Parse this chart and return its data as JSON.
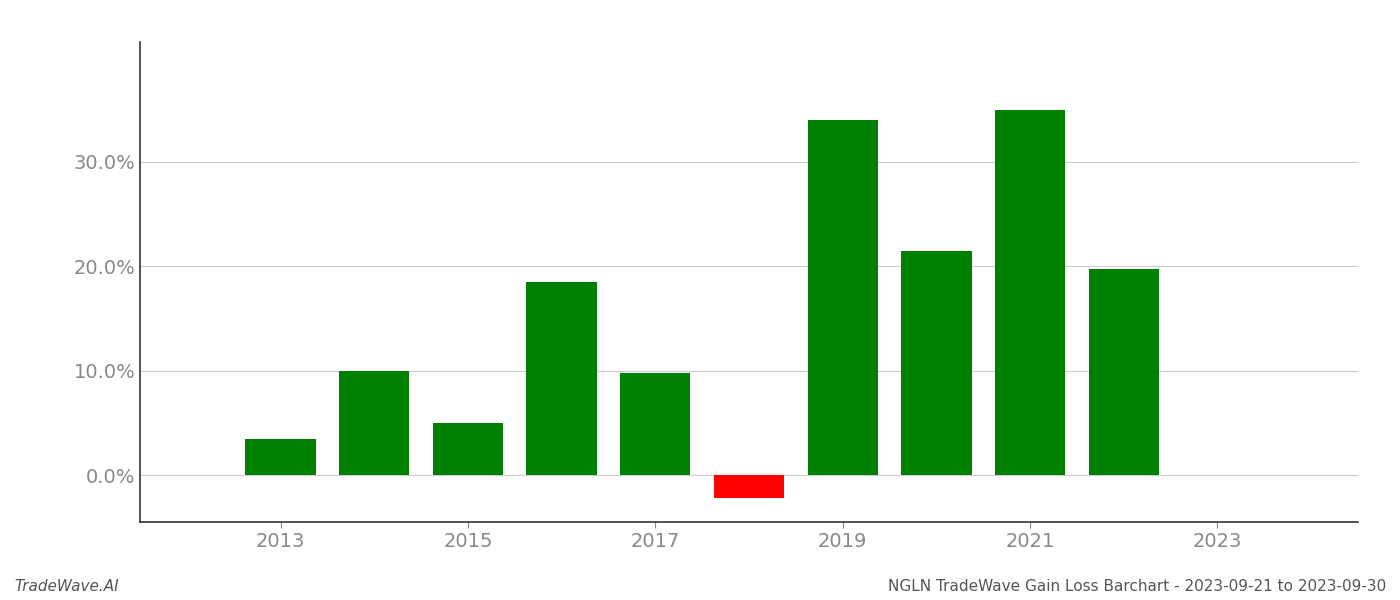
{
  "years": [
    2013,
    2014,
    2015,
    2016,
    2017,
    2018,
    2019,
    2020,
    2021,
    2022
  ],
  "values": [
    0.035,
    0.1,
    0.05,
    0.185,
    0.098,
    -0.022,
    0.34,
    0.215,
    0.35,
    0.197
  ],
  "colors": [
    "#008000",
    "#008000",
    "#008000",
    "#008000",
    "#008000",
    "#ff0000",
    "#008000",
    "#008000",
    "#008000",
    "#008000"
  ],
  "footer_left": "TradeWave.AI",
  "footer_right": "NGLN TradeWave Gain Loss Barchart - 2023-09-21 to 2023-09-30",
  "ytick_labels": [
    "0.0%",
    "10.0%",
    "20.0%",
    "30.0%"
  ],
  "ytick_values": [
    0.0,
    0.1,
    0.2,
    0.3
  ],
  "xtick_labels": [
    "2013",
    "2015",
    "2017",
    "2019",
    "2021",
    "2023"
  ],
  "xtick_values": [
    2013,
    2015,
    2017,
    2019,
    2021,
    2023
  ],
  "ylim": [
    -0.045,
    0.415
  ],
  "xlim": [
    2011.5,
    2024.5
  ],
  "bar_width": 0.75,
  "grid_color": "#cccccc",
  "background_color": "#ffffff",
  "footer_fontsize": 11,
  "tick_fontsize": 14,
  "tick_color": "#888888",
  "spine_color": "#333333"
}
